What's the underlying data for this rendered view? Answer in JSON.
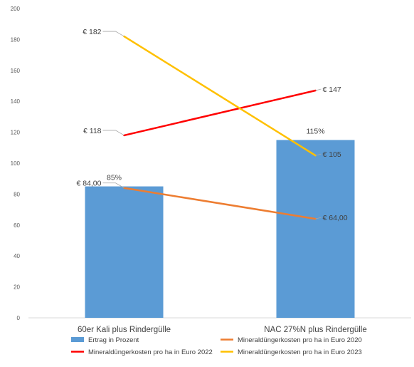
{
  "chart_data": {
    "type": "bar+line",
    "categories": [
      "60er Kali plus Rindergülle",
      "NAC 27%N  plus Rindergülle"
    ],
    "ylim": [
      0,
      200
    ],
    "yticks": [
      0,
      20,
      40,
      60,
      80,
      100,
      120,
      140,
      160,
      180,
      200
    ],
    "grid": false,
    "legend_position": "bottom",
    "bar_series": {
      "name": "Ertrag in Prozent",
      "color": "#5b9bd5",
      "values": [
        85,
        115
      ],
      "labels": [
        "85%",
        "115%"
      ]
    },
    "line_series": [
      {
        "name": "Mineraldüngerkosten pro ha in Euro 2020",
        "color": "#ed7d31",
        "values": [
          84,
          64
        ],
        "labels": [
          "€ 84,00",
          "€ 64,00"
        ]
      },
      {
        "name": "Mineraldüngerkosten pro ha in Euro 2022",
        "color": "#ff0000",
        "values": [
          118,
          147
        ],
        "labels": [
          "€ 118",
          "€ 147"
        ]
      },
      {
        "name": "Mineraldüngerkosten pro ha in Euro 2023",
        "color": "#ffc000",
        "values": [
          182,
          105
        ],
        "labels": [
          "€ 182",
          "€ 105"
        ]
      }
    ]
  }
}
